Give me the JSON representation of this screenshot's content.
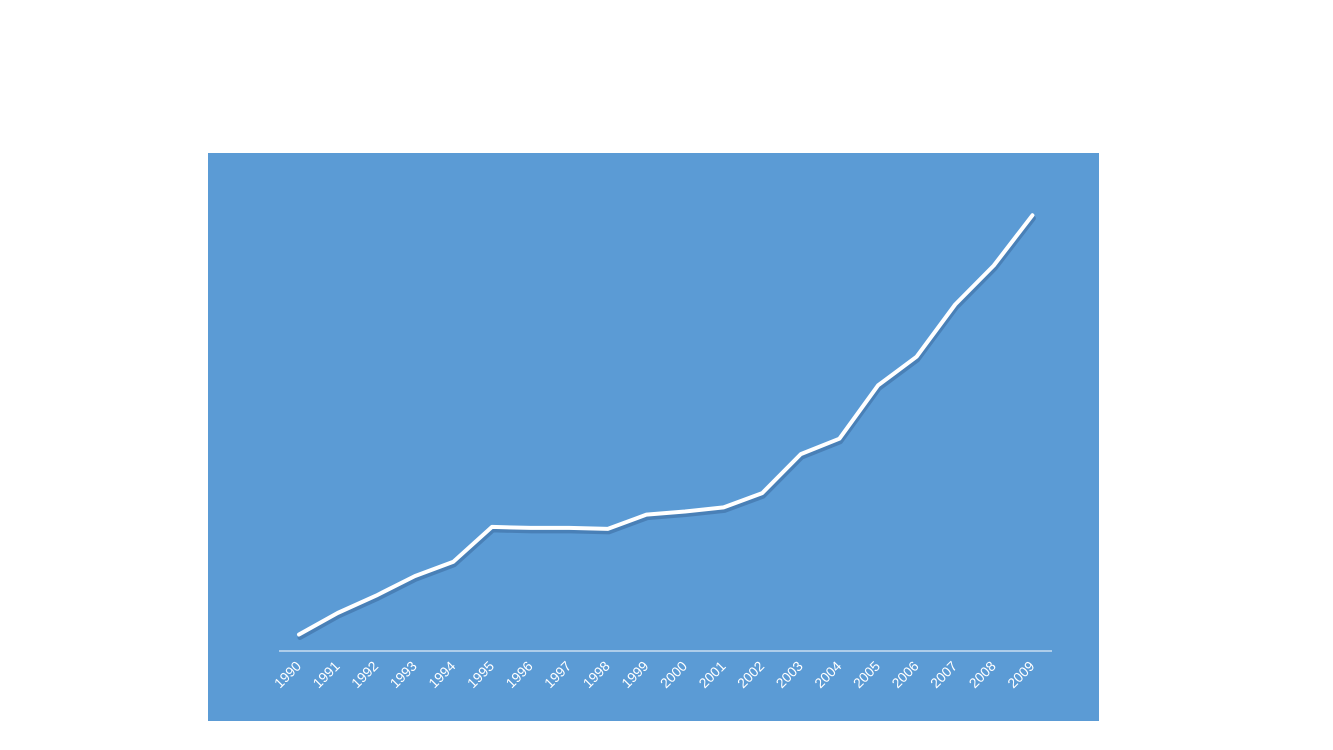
{
  "chart_data": {
    "type": "line",
    "categories": [
      "1990",
      "1991",
      "1992",
      "1993",
      "1994",
      "1995",
      "1996",
      "1997",
      "1998",
      "1999",
      "2000",
      "2001",
      "2002",
      "2003",
      "2004",
      "2005",
      "2006",
      "2007",
      "2008",
      "2009"
    ],
    "values": [
      100,
      121,
      138,
      157,
      171,
      205,
      204,
      204,
      203,
      217,
      220,
      224,
      238,
      276,
      291,
      343,
      371,
      422,
      460,
      509
    ],
    "title": "",
    "xlabel": "",
    "ylabel": "",
    "ylim": [
      0,
      550
    ],
    "grid": false,
    "legend": "none",
    "drop_lines": true
  },
  "colors": {
    "panel_background": "#5b9bd5",
    "line": "#ffffff",
    "line_shadow": "#3d6ea3",
    "drop_line": "#ffffff",
    "axis": "#ffffff",
    "tick_label": "#ffffff"
  }
}
